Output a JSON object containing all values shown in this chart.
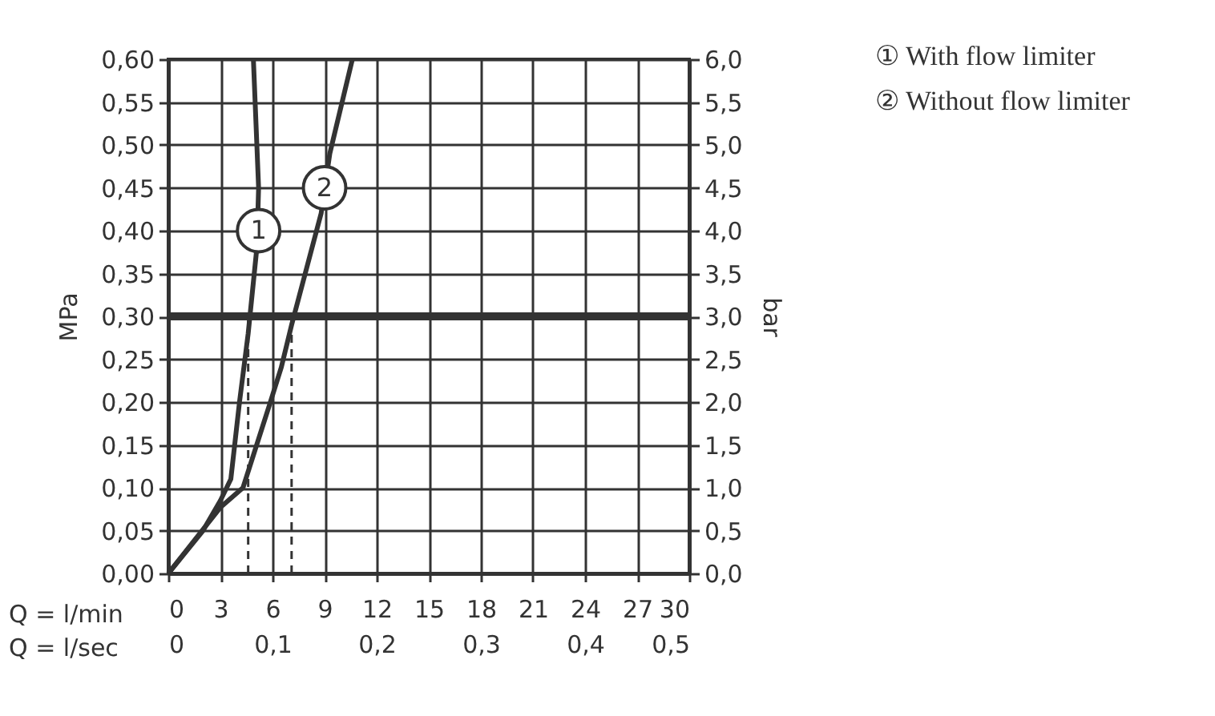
{
  "chart_data": {
    "type": "line",
    "xlabel": "Q = l/min",
    "x2label": "Q = l/sec",
    "ylabel": "MPa",
    "y2label": "bar",
    "series": [
      {
        "name": "① With flow limiter",
        "color": "#333333",
        "x": [
          0,
          2,
          3,
          3.6,
          4.1,
          4.6,
          5.1,
          5.2,
          5.1,
          4.9
        ],
        "values": [
          0,
          0.05,
          0.085,
          0.11,
          0.2,
          0.28,
          0.38,
          0.45,
          0.5,
          0.6
        ]
      },
      {
        "name": "② Without flow limiter",
        "color": "#333333",
        "x": [
          0,
          3,
          4.3,
          5.8,
          6.5,
          7.1,
          8.8,
          9.3,
          10.6
        ],
        "values": [
          0,
          0.077,
          0.1,
          0.195,
          0.24,
          0.29,
          0.42,
          0.49,
          0.6
        ]
      }
    ],
    "xlim": [
      0,
      30
    ],
    "xticks": [
      0,
      3,
      6,
      9,
      12,
      15,
      18,
      21,
      24,
      27,
      30
    ],
    "x2lim": [
      0,
      0.5
    ],
    "x2ticks": [
      0,
      {
        "value": 0.1,
        "label": "0,1"
      },
      {
        "value": 0.2,
        "label": "0,2"
      },
      {
        "value": 0.3,
        "label": "0,3"
      },
      {
        "value": 0.4,
        "label": "0,4"
      },
      {
        "value": 0.5,
        "label": "0,5"
      }
    ],
    "ylim": [
      0,
      0.6
    ],
    "yticks": [
      {
        "value": 0,
        "label": "0,00"
      },
      {
        "value": 0.05,
        "label": "0,05"
      },
      {
        "value": 0.1,
        "label": "0,10"
      },
      {
        "value": 0.15,
        "label": "0,15"
      },
      {
        "value": 0.2,
        "label": "0,20"
      },
      {
        "value": 0.25,
        "label": "0,25"
      },
      {
        "value": 0.3,
        "label": "0,30"
      },
      {
        "value": 0.35,
        "label": "0,35"
      },
      {
        "value": 0.4,
        "label": "0,40"
      },
      {
        "value": 0.45,
        "label": "0,45"
      },
      {
        "value": 0.5,
        "label": "0,50"
      },
      {
        "value": 0.55,
        "label": "0,55"
      },
      {
        "value": 0.6,
        "label": "0,60"
      }
    ],
    "y2lim": [
      0,
      6
    ],
    "y2ticks": [
      {
        "value": 0,
        "label": "0,0"
      },
      {
        "value": 0.5,
        "label": "0,5"
      },
      {
        "value": 1,
        "label": "1,0"
      },
      {
        "value": 1.5,
        "label": "1,5"
      },
      {
        "value": 2,
        "label": "2,0"
      },
      {
        "value": 2.5,
        "label": "2,5"
      },
      {
        "value": 3,
        "label": "3,0"
      },
      {
        "value": 3.5,
        "label": "3,5"
      },
      {
        "value": 4,
        "label": "4,0"
      },
      {
        "value": 4.5,
        "label": "4,5"
      },
      {
        "value": 5,
        "label": "5,0"
      },
      {
        "value": 5.5,
        "label": "5,5"
      },
      {
        "value": 6,
        "label": "6,0"
      }
    ],
    "grid": true,
    "legend": "top right",
    "line_style": "solid",
    "ref_lines": [
      {
        "axis": "y",
        "value": 0.3,
        "color": "#333333",
        "line_style": "solid"
      },
      {
        "axis": "x",
        "value": 4.6,
        "color": "#333333",
        "line_style": "dashed"
      },
      {
        "axis": "x",
        "value": 7.1,
        "color": "#333333",
        "line_style": "dashed"
      }
    ],
    "annotations": [
      {
        "text": "1",
        "x": 5.2,
        "y": 0.4
      },
      {
        "text": "2",
        "x": 9.0,
        "y": 0.45
      }
    ]
  }
}
